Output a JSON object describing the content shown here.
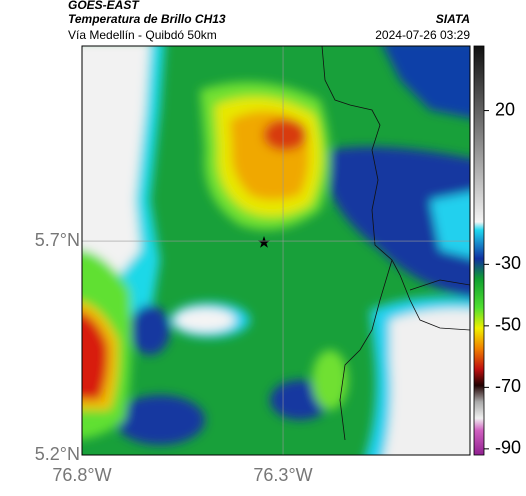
{
  "header": {
    "source": "GOES-EAST",
    "title": "Temperatura de Brillo CH13",
    "org": "SIATA",
    "subtitle": "Vía Medellín - Quibdó 50km",
    "datetime": "2024-07-26 03:29"
  },
  "map": {
    "lon_range": [
      -76.8,
      -75.835
    ],
    "lat_range": [
      5.2,
      6.156
    ],
    "lon_ticks": [
      {
        "value": -76.8,
        "label": "76.8°W"
      },
      {
        "value": -76.3,
        "label": "76.3°W"
      }
    ],
    "lat_ticks": [
      {
        "value": 5.7,
        "label": "5.7°N"
      },
      {
        "value": 5.2,
        "label": "5.2°N"
      }
    ]
  },
  "colorbar": {
    "range": [
      -92,
      41
    ],
    "ticks": [
      20,
      -30,
      -50,
      -70,
      -90
    ]
  }
}
